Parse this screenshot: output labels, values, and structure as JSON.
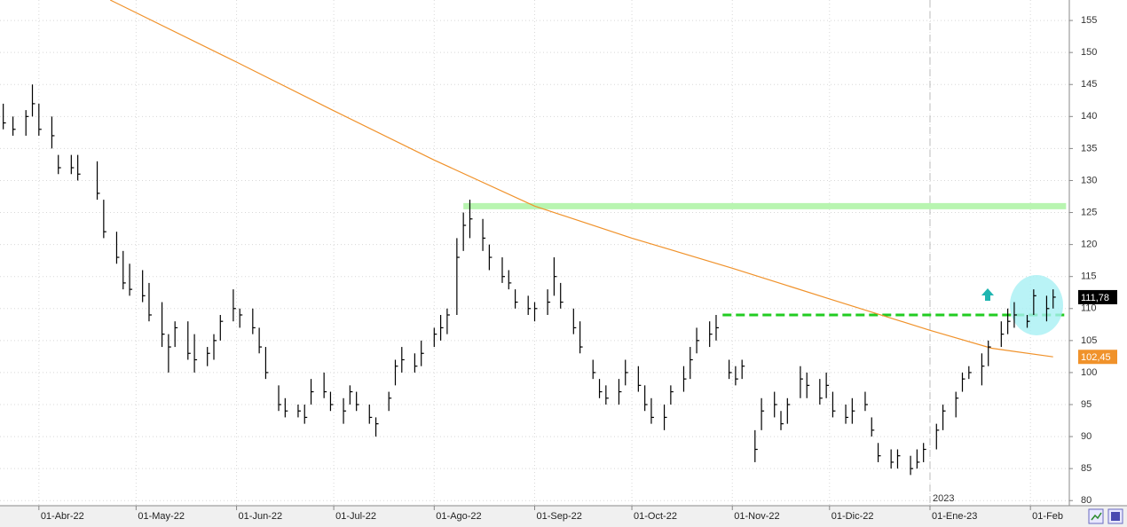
{
  "chart_data": {
    "type": "ohlc",
    "xlim": [
      "2022-03-20",
      "2023-02-13"
    ],
    "ylim": [
      79.2,
      158.2
    ],
    "yticks": [
      80,
      85,
      90,
      95,
      100,
      105,
      110,
      115,
      120,
      125,
      130,
      135,
      140,
      145,
      150,
      155
    ],
    "xticks": [
      {
        "value": "2022-04-01",
        "label": "01-Abr-22"
      },
      {
        "value": "2022-05-01",
        "label": "01-May-22"
      },
      {
        "value": "2022-06-01",
        "label": "01-Jun-22"
      },
      {
        "value": "2022-07-01",
        "label": "01-Jul-22"
      },
      {
        "value": "2022-08-01",
        "label": "01-Ago-22"
      },
      {
        "value": "2022-09-01",
        "label": "01-Sep-22"
      },
      {
        "value": "2022-10-01",
        "label": "01-Oct-22"
      },
      {
        "value": "2022-11-01",
        "label": "01-Nov-22"
      },
      {
        "value": "2022-12-01",
        "label": "01-Dic-22"
      },
      {
        "value": "2023-01-01",
        "label": "01-Ene-23"
      },
      {
        "value": "2023-02-01",
        "label": "01-Feb"
      }
    ],
    "year_marker": {
      "value": "2023-01-01",
      "label": "2023"
    },
    "grid": true,
    "bar_color": "#000000",
    "bars": [
      {
        "date": "2022-03-21",
        "high": 142,
        "low": 138,
        "close": 139
      },
      {
        "date": "2022-03-24",
        "high": 140,
        "low": 137,
        "close": 138
      },
      {
        "date": "2022-03-28",
        "high": 141,
        "low": 137,
        "close": 140
      },
      {
        "date": "2022-03-30",
        "high": 145,
        "low": 140,
        "close": 142
      },
      {
        "date": "2022-04-01",
        "high": 142,
        "low": 137,
        "close": 138
      },
      {
        "date": "2022-04-05",
        "high": 140,
        "low": 135,
        "close": 137
      },
      {
        "date": "2022-04-07",
        "high": 134,
        "low": 131,
        "close": 132
      },
      {
        "date": "2022-04-11",
        "high": 134,
        "low": 131,
        "close": 132
      },
      {
        "date": "2022-04-13",
        "high": 134,
        "low": 130,
        "close": 131
      },
      {
        "date": "2022-04-19",
        "high": 133,
        "low": 127,
        "close": 128
      },
      {
        "date": "2022-04-21",
        "high": 127,
        "low": 121,
        "close": 122
      },
      {
        "date": "2022-04-25",
        "high": 122,
        "low": 117,
        "close": 118
      },
      {
        "date": "2022-04-27",
        "high": 119,
        "low": 113,
        "close": 114
      },
      {
        "date": "2022-04-29",
        "high": 117,
        "low": 112,
        "close": 113
      },
      {
        "date": "2022-05-03",
        "high": 116,
        "low": 111,
        "close": 112
      },
      {
        "date": "2022-05-05",
        "high": 114,
        "low": 108,
        "close": 109
      },
      {
        "date": "2022-05-09",
        "high": 111,
        "low": 104,
        "close": 106
      },
      {
        "date": "2022-05-11",
        "high": 106,
        "low": 100,
        "close": 104
      },
      {
        "date": "2022-05-13",
        "high": 108,
        "low": 104,
        "close": 107
      },
      {
        "date": "2022-05-17",
        "high": 108,
        "low": 102,
        "close": 103
      },
      {
        "date": "2022-05-19",
        "high": 106,
        "low": 100,
        "close": 102
      },
      {
        "date": "2022-05-23",
        "high": 104,
        "low": 101,
        "close": 103
      },
      {
        "date": "2022-05-25",
        "high": 106,
        "low": 102,
        "close": 105
      },
      {
        "date": "2022-05-27",
        "high": 109,
        "low": 105,
        "close": 108
      },
      {
        "date": "2022-05-31",
        "high": 113,
        "low": 108,
        "close": 110
      },
      {
        "date": "2022-06-02",
        "high": 110,
        "low": 107,
        "close": 109
      },
      {
        "date": "2022-06-06",
        "high": 110,
        "low": 106,
        "close": 107
      },
      {
        "date": "2022-06-08",
        "high": 107,
        "low": 103,
        "close": 104
      },
      {
        "date": "2022-06-10",
        "high": 104,
        "low": 99,
        "close": 100
      },
      {
        "date": "2022-06-14",
        "high": 98,
        "low": 94,
        "close": 95
      },
      {
        "date": "2022-06-16",
        "high": 96,
        "low": 93,
        "close": 94
      },
      {
        "date": "2022-06-20",
        "high": 95,
        "low": 93,
        "close": 94
      },
      {
        "date": "2022-06-22",
        "high": 95,
        "low": 92,
        "close": 93
      },
      {
        "date": "2022-06-24",
        "high": 99,
        "low": 95,
        "close": 97
      },
      {
        "date": "2022-06-28",
        "high": 100,
        "low": 96,
        "close": 97
      },
      {
        "date": "2022-06-30",
        "high": 97,
        "low": 94,
        "close": 95
      },
      {
        "date": "2022-07-04",
        "high": 96,
        "low": 92,
        "close": 94
      },
      {
        "date": "2022-07-06",
        "high": 98,
        "low": 95,
        "close": 97
      },
      {
        "date": "2022-07-08",
        "high": 97,
        "low": 94,
        "close": 95
      },
      {
        "date": "2022-07-12",
        "high": 95,
        "low": 92,
        "close": 93
      },
      {
        "date": "2022-07-14",
        "high": 93,
        "low": 90,
        "close": 92
      },
      {
        "date": "2022-07-18",
        "high": 97,
        "low": 94,
        "close": 96
      },
      {
        "date": "2022-07-20",
        "high": 102,
        "low": 98,
        "close": 101
      },
      {
        "date": "2022-07-22",
        "high": 104,
        "low": 100,
        "close": 102
      },
      {
        "date": "2022-07-26",
        "high": 103,
        "low": 100,
        "close": 101
      },
      {
        "date": "2022-07-28",
        "high": 105,
        "low": 101,
        "close": 103
      },
      {
        "date": "2022-08-01",
        "high": 107,
        "low": 104,
        "close": 106
      },
      {
        "date": "2022-08-03",
        "high": 109,
        "low": 105,
        "close": 107
      },
      {
        "date": "2022-08-05",
        "high": 110,
        "low": 106,
        "close": 109
      },
      {
        "date": "2022-08-08",
        "high": 121,
        "low": 109,
        "close": 118
      },
      {
        "date": "2022-08-10",
        "high": 125,
        "low": 119,
        "close": 123
      },
      {
        "date": "2022-08-12",
        "high": 127,
        "low": 121,
        "close": 124
      },
      {
        "date": "2022-08-16",
        "high": 124,
        "low": 119,
        "close": 121
      },
      {
        "date": "2022-08-18",
        "high": 120,
        "low": 116,
        "close": 118
      },
      {
        "date": "2022-08-22",
        "high": 118,
        "low": 114,
        "close": 115
      },
      {
        "date": "2022-08-24",
        "high": 116,
        "low": 113,
        "close": 114
      },
      {
        "date": "2022-08-26",
        "high": 113,
        "low": 110,
        "close": 111
      },
      {
        "date": "2022-08-30",
        "high": 112,
        "low": 109,
        "close": 110
      },
      {
        "date": "2022-09-01",
        "high": 111,
        "low": 108,
        "close": 110
      },
      {
        "date": "2022-09-05",
        "high": 113,
        "low": 109,
        "close": 111
      },
      {
        "date": "2022-09-07",
        "high": 118,
        "low": 112,
        "close": 115
      },
      {
        "date": "2022-09-09",
        "high": 114,
        "low": 110,
        "close": 111
      },
      {
        "date": "2022-09-13",
        "high": 110,
        "low": 106,
        "close": 107
      },
      {
        "date": "2022-09-15",
        "high": 108,
        "low": 103,
        "close": 104
      },
      {
        "date": "2022-09-19",
        "high": 102,
        "low": 99,
        "close": 100
      },
      {
        "date": "2022-09-21",
        "high": 99,
        "low": 96,
        "close": 97
      },
      {
        "date": "2022-09-23",
        "high": 98,
        "low": 95,
        "close": 96
      },
      {
        "date": "2022-09-27",
        "high": 99,
        "low": 95,
        "close": 97
      },
      {
        "date": "2022-09-29",
        "high": 102,
        "low": 98,
        "close": 100
      },
      {
        "date": "2022-10-03",
        "high": 101,
        "low": 97,
        "close": 98
      },
      {
        "date": "2022-10-05",
        "high": 98,
        "low": 94,
        "close": 95
      },
      {
        "date": "2022-10-07",
        "high": 96,
        "low": 92,
        "close": 93
      },
      {
        "date": "2022-10-11",
        "high": 95,
        "low": 91,
        "close": 93
      },
      {
        "date": "2022-10-13",
        "high": 98,
        "low": 95,
        "close": 97
      },
      {
        "date": "2022-10-17",
        "high": 101,
        "low": 97,
        "close": 99
      },
      {
        "date": "2022-10-19",
        "high": 104,
        "low": 99,
        "close": 102
      },
      {
        "date": "2022-10-21",
        "high": 107,
        "low": 103,
        "close": 105
      },
      {
        "date": "2022-10-25",
        "high": 108,
        "low": 104,
        "close": 106
      },
      {
        "date": "2022-10-27",
        "high": 109,
        "low": 105,
        "close": 107
      },
      {
        "date": "2022-10-31",
        "high": 102,
        "low": 99,
        "close": 100
      },
      {
        "date": "2022-11-02",
        "high": 101,
        "low": 98,
        "close": 99
      },
      {
        "date": "2022-11-04",
        "high": 102,
        "low": 99,
        "close": 101
      },
      {
        "date": "2022-11-08",
        "high": 91,
        "low": 86,
        "close": 88
      },
      {
        "date": "2022-11-10",
        "high": 96,
        "low": 91,
        "close": 94
      },
      {
        "date": "2022-11-14",
        "high": 97,
        "low": 93,
        "close": 95
      },
      {
        "date": "2022-11-16",
        "high": 94,
        "low": 91,
        "close": 92
      },
      {
        "date": "2022-11-18",
        "high": 96,
        "low": 92,
        "close": 95
      },
      {
        "date": "2022-11-22",
        "high": 101,
        "low": 96,
        "close": 99
      },
      {
        "date": "2022-11-24",
        "high": 100,
        "low": 96,
        "close": 98
      },
      {
        "date": "2022-11-28",
        "high": 99,
        "low": 95,
        "close": 96
      },
      {
        "date": "2022-11-30",
        "high": 100,
        "low": 96,
        "close": 98
      },
      {
        "date": "2022-12-02",
        "high": 97,
        "low": 93,
        "close": 94
      },
      {
        "date": "2022-12-06",
        "high": 95,
        "low": 92,
        "close": 93
      },
      {
        "date": "2022-12-08",
        "high": 96,
        "low": 92,
        "close": 94
      },
      {
        "date": "2022-12-12",
        "high": 97,
        "low": 94,
        "close": 95
      },
      {
        "date": "2022-12-14",
        "high": 93,
        "low": 90,
        "close": 91
      },
      {
        "date": "2022-12-16",
        "high": 89,
        "low": 86,
        "close": 87
      },
      {
        "date": "2022-12-20",
        "high": 88,
        "low": 85,
        "close": 86
      },
      {
        "date": "2022-12-22",
        "high": 88,
        "low": 85,
        "close": 87
      },
      {
        "date": "2022-12-26",
        "high": 87,
        "low": 84,
        "close": 85
      },
      {
        "date": "2022-12-28",
        "high": 88,
        "low": 85,
        "close": 86
      },
      {
        "date": "2022-12-30",
        "high": 89,
        "low": 86,
        "close": 88
      },
      {
        "date": "2023-01-03",
        "high": 92,
        "low": 88,
        "close": 91
      },
      {
        "date": "2023-01-05",
        "high": 95,
        "low": 91,
        "close": 94
      },
      {
        "date": "2023-01-09",
        "high": 97,
        "low": 93,
        "close": 96
      },
      {
        "date": "2023-01-11",
        "high": 100,
        "low": 97,
        "close": 99
      },
      {
        "date": "2023-01-13",
        "high": 101,
        "low": 99,
        "close": 100
      },
      {
        "date": "2023-01-17",
        "high": 103,
        "low": 98,
        "close": 101
      },
      {
        "date": "2023-01-19",
        "high": 105,
        "low": 101,
        "close": 104
      },
      {
        "date": "2023-01-23",
        "high": 108,
        "low": 104,
        "close": 106
      },
      {
        "date": "2023-01-25",
        "high": 110,
        "low": 106,
        "close": 108
      },
      {
        "date": "2023-01-27",
        "high": 111,
        "low": 107,
        "close": 109
      },
      {
        "date": "2023-01-31",
        "high": 109,
        "low": 107,
        "close": 108
      },
      {
        "date": "2023-02-02",
        "high": 113,
        "low": 109,
        "close": 112
      },
      {
        "date": "2023-02-06",
        "high": 112,
        "low": 108,
        "close": 110
      },
      {
        "date": "2023-02-08",
        "high": 113,
        "low": 110,
        "close": 111.78
      }
    ],
    "moving_average": {
      "color": "#f0922b",
      "x": [
        "2022-04-23",
        "2022-06-01",
        "2022-07-01",
        "2022-08-01",
        "2022-09-01",
        "2022-10-01",
        "2022-11-01",
        "2022-12-01",
        "2023-01-01",
        "2023-01-20",
        "2023-02-08"
      ],
      "values": [
        158.2,
        148.5,
        140.9,
        133.2,
        126.0,
        121.0,
        116.3,
        111.5,
        106.6,
        103.8,
        102.45
      ]
    },
    "levels": [
      {
        "value": 126,
        "from": "2022-08-10",
        "to": "2023-02-12",
        "color": "#b8f5b0",
        "style": "solid"
      },
      {
        "value": 109,
        "from": "2022-10-29",
        "to": "2023-02-12",
        "color": "#22cc22",
        "style": "dashed"
      }
    ],
    "price_labels": [
      {
        "value": 111.78,
        "label": "111,78",
        "background": "#000000",
        "color": "#ffffff"
      },
      {
        "value": 102.45,
        "label": "102,45",
        "background": "#f0922b",
        "color": "#ffffff"
      }
    ]
  }
}
